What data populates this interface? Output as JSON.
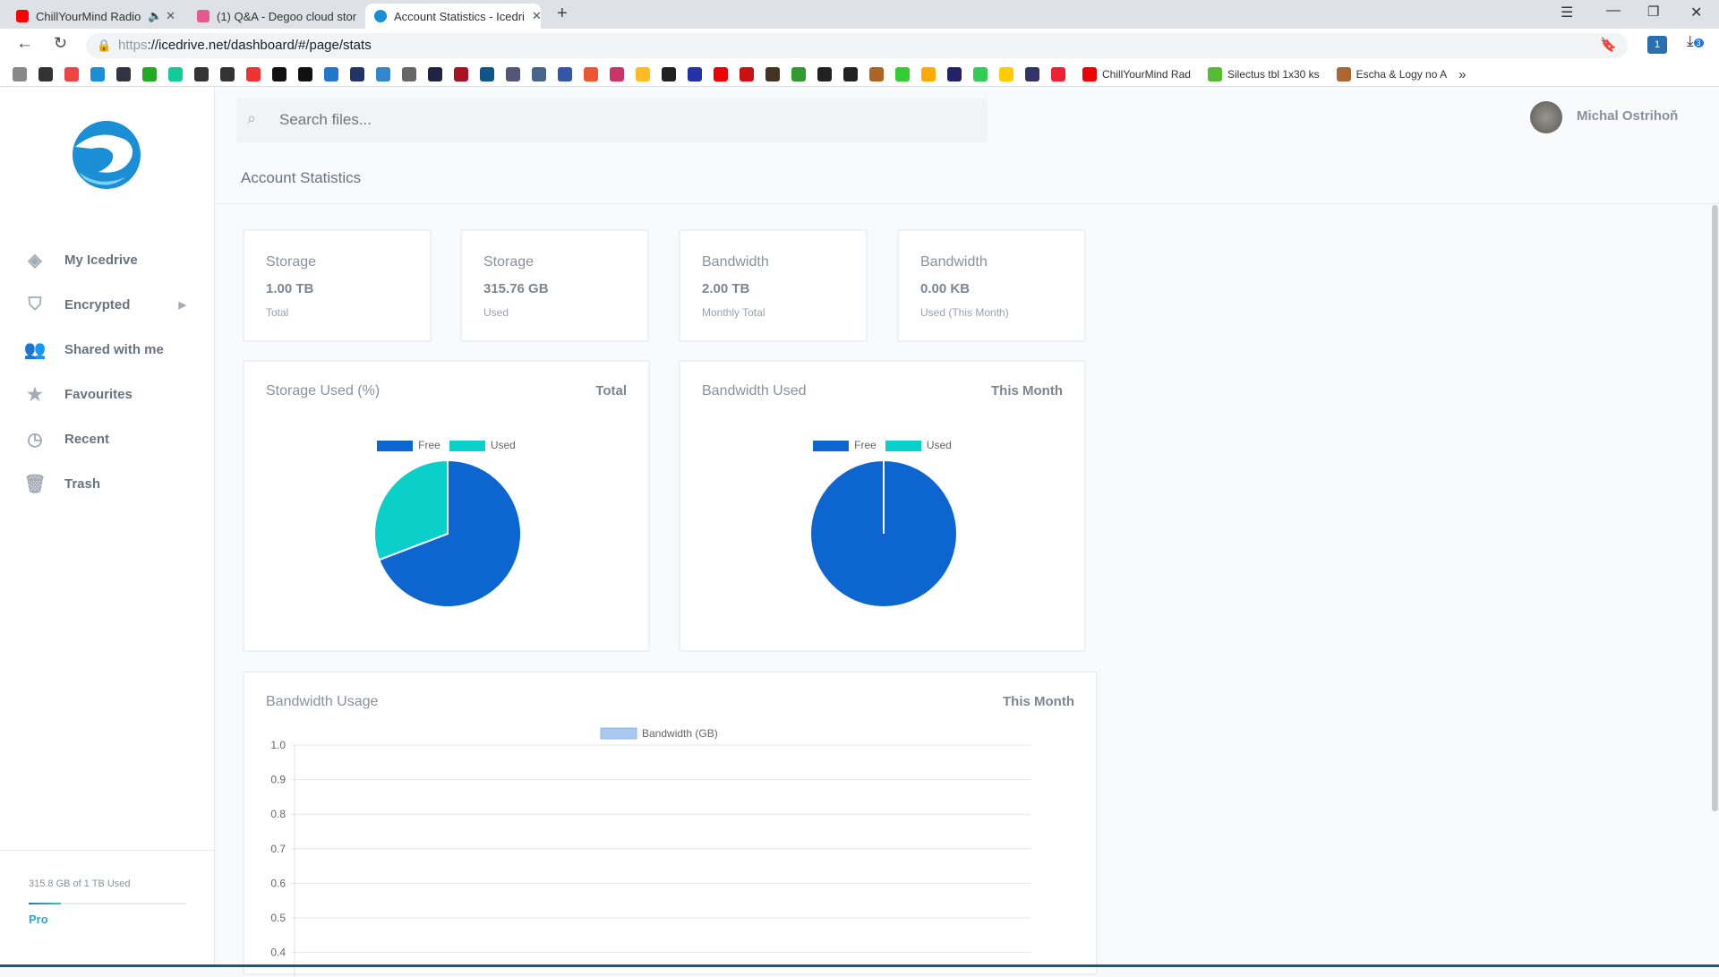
{
  "browser": {
    "tabs": [
      {
        "title": "ChillYourMind Radio",
        "icon": "youtube-icon"
      },
      {
        "title": "(1) Q&A - Degoo cloud stor",
        "icon": "degoo-icon"
      },
      {
        "title": "Account Statistics - Icedri",
        "icon": "icedrive-icon"
      }
    ],
    "url_scheme": "https",
    "url_rest": "://icedrive.net/dashboard/#/page/stats",
    "bookmarks": [
      "ChillYourMind Rad",
      "Silectus tbl 1x30 ks",
      "Escha & Logy no A"
    ],
    "extension_badge": "1",
    "download_badge": "3"
  },
  "search": {
    "placeholder": "Search files..."
  },
  "user": {
    "name": "Michal Ostrihoň"
  },
  "page_title": "Account Statistics",
  "sidebar": {
    "items": [
      {
        "label": "My Icedrive",
        "icon": "layers-icon"
      },
      {
        "label": "Encrypted",
        "icon": "shield-icon"
      },
      {
        "label": "Shared with me",
        "icon": "users-icon"
      },
      {
        "label": "Favourites",
        "icon": "star-icon"
      },
      {
        "label": "Recent",
        "icon": "clock-icon"
      },
      {
        "label": "Trash",
        "icon": "trash-icon"
      }
    ],
    "usage_text": "315.8 GB of 1 TB Used",
    "usage_fraction": 0.308,
    "plan": "Pro"
  },
  "stats": [
    {
      "title": "Storage",
      "value": "1.00 TB",
      "sub": "Total"
    },
    {
      "title": "Storage",
      "value": "315.76 GB",
      "sub": "Used"
    },
    {
      "title": "Bandwidth",
      "value": "2.00 TB",
      "sub": "Monthly Total"
    },
    {
      "title": "Bandwidth",
      "value": "0.00 KB",
      "sub": "Used (This Month)"
    }
  ],
  "colors": {
    "free": "#0d66d0",
    "used": "#0bd0c9",
    "accent": "#2aa8d0"
  },
  "chart_data": [
    {
      "type": "pie",
      "title": "Storage Used (%)",
      "period": "Total",
      "labels": [
        "Free",
        "Used"
      ],
      "values": [
        69.2,
        30.8
      ]
    },
    {
      "type": "pie",
      "title": "Bandwidth Used",
      "period": "This Month",
      "labels": [
        "Free",
        "Used"
      ],
      "values": [
        100,
        0
      ]
    },
    {
      "type": "bar",
      "title": "Bandwidth Usage",
      "period": "This Month",
      "series": [
        {
          "name": "Bandwidth (GB)",
          "values": []
        }
      ],
      "ylim": [
        0,
        1
      ],
      "yticks": [
        "1.0",
        "0.9",
        "0.8",
        "0.7",
        "0.6",
        "0.5",
        "0.4"
      ],
      "grid": true,
      "legend": "top"
    }
  ]
}
